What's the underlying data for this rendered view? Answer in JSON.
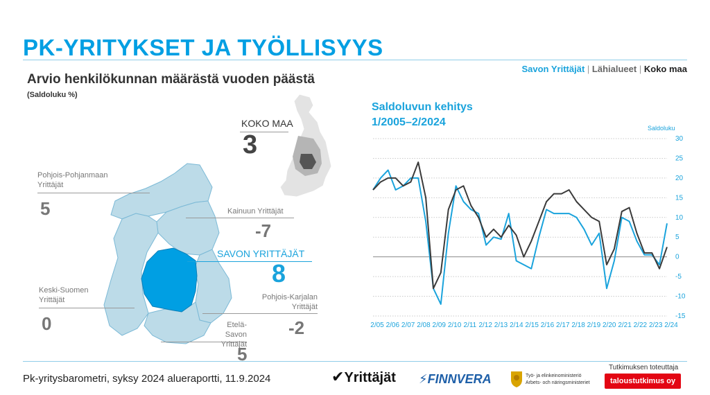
{
  "header": {
    "title": "PK-YRITYKSET JA TYÖLLISYYS",
    "legend": {
      "savon": "Savon Yrittäjät",
      "separator": "|",
      "lahialueet": "Lähialueet",
      "koko_maa": "Koko maa"
    },
    "subtitle": "Arvio henkilökunnan määrästä vuoden päästä",
    "note": "(Saldoluku %)"
  },
  "colors": {
    "accent": "#009fe3",
    "savon_series": "#1aa3dc",
    "koko_series": "#3a3a3a",
    "map_neighbour": "#bcdbe8",
    "map_savon": "#009fe3"
  },
  "map": {
    "koko_maa": {
      "label": "KOKO MAA",
      "value": "3"
    },
    "regions": [
      {
        "line1": "Pohjois-Pohjanmaan",
        "line2": "Yrittäjät",
        "value": "5"
      },
      {
        "line1": "Kainuun Yrittäjät",
        "line2": "",
        "value": "-7"
      },
      {
        "line1": "Keski-Suomen",
        "line2": "Yrittäjät",
        "value": "0"
      },
      {
        "line1": "Pohjois-Karjalan",
        "line2": "Yrittäjät",
        "value": "-2"
      },
      {
        "line1": "Etelä-Savon",
        "line2": "Yrittäjät",
        "value": "5"
      }
    ],
    "savon": {
      "label": "SAVON YRITTÄJÄT",
      "value": "8"
    }
  },
  "chart_data": {
    "type": "line",
    "title": "Saldoluvun kehitys",
    "subtitle": "1/2005–2/2024",
    "ylabel": "Saldoluku",
    "ylim": [
      -15,
      30
    ],
    "yticks": [
      30,
      25,
      20,
      15,
      10,
      5,
      0,
      -5,
      -10,
      -15
    ],
    "grid": true,
    "x_ticks": [
      "2/05",
      "2/06",
      "2/07",
      "2/08",
      "2/09",
      "2/10",
      "2/11",
      "2/12",
      "2/13",
      "2/14",
      "2/15",
      "2/16",
      "2/17",
      "2/18",
      "2/19",
      "2/20",
      "2/21",
      "2/22",
      "2/23",
      "2/24"
    ],
    "series": [
      {
        "name": "Savon Yrittäjät",
        "values": [
          17,
          20,
          22,
          17,
          18,
          20,
          20,
          9,
          -8,
          -12,
          6,
          18,
          14,
          12,
          11,
          3,
          5,
          4.5,
          11,
          -1,
          -2,
          -3,
          5,
          12,
          11,
          11,
          11,
          10,
          7,
          3,
          6,
          -8,
          -1,
          10,
          9,
          4,
          0.5,
          0.5,
          -2,
          8.5
        ]
      },
      {
        "name": "Koko maa",
        "values": [
          17,
          19,
          20,
          20,
          18,
          19,
          24,
          15,
          -8,
          -4,
          12,
          17,
          18,
          13,
          10,
          5,
          7,
          5,
          8,
          5.5,
          0,
          4,
          9,
          14,
          16,
          16,
          17,
          14,
          12,
          10,
          9,
          -2,
          2,
          11.5,
          12.5,
          6,
          1,
          1,
          -3,
          2.5
        ]
      }
    ]
  },
  "footer": {
    "report": "Pk-yritysbarometri, syksy 2024 alueraportti, 11.9.2024",
    "logos": {
      "yrittajat": "Yrittäjät",
      "finnvera": "FINNVERA",
      "tem_line1": "Työ- ja elinkeinoministeriö",
      "tem_line2": "Arbets- och näringsministeriet",
      "tt_caption": "Tutkimuksen toteuttaja",
      "tt_name": "taloustutkimus oy"
    }
  }
}
